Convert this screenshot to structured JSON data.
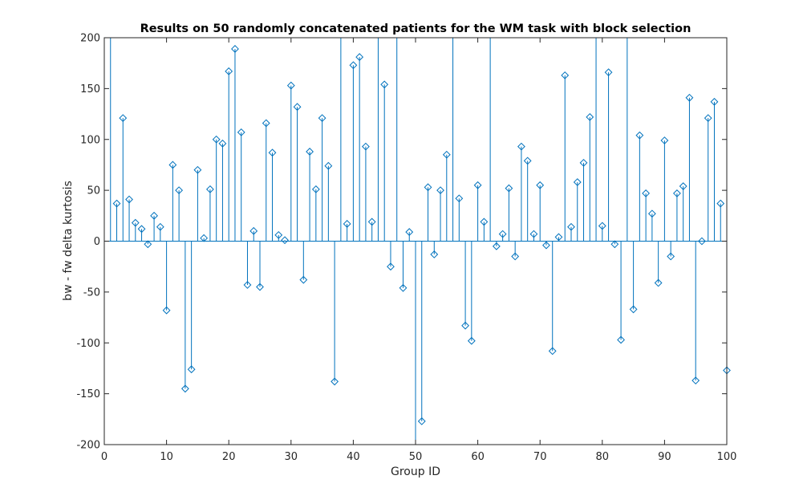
{
  "chart_data": {
    "type": "stem",
    "title": "Results on 50 randomly concatenated patients for the WM task with block selection",
    "xlabel": "Group ID",
    "ylabel": "bw - fw delta kurtosis",
    "xlim": [
      0,
      100
    ],
    "ylim": [
      -200,
      200
    ],
    "xticks": [
      0,
      10,
      20,
      30,
      40,
      50,
      60,
      70,
      80,
      90,
      100
    ],
    "yticks": [
      -200,
      -150,
      -100,
      -50,
      0,
      50,
      100,
      150,
      200
    ],
    "grid": false,
    "legend": "none",
    "marker": "diamond",
    "x": [
      1,
      2,
      3,
      4,
      5,
      6,
      7,
      8,
      9,
      10,
      11,
      12,
      13,
      14,
      15,
      16,
      17,
      18,
      19,
      20,
      21,
      22,
      23,
      24,
      25,
      26,
      27,
      28,
      29,
      30,
      31,
      32,
      33,
      34,
      35,
      36,
      37,
      38,
      39,
      40,
      41,
      42,
      43,
      44,
      45,
      46,
      47,
      48,
      49,
      50,
      51,
      52,
      53,
      54,
      55,
      56,
      57,
      58,
      59,
      60,
      61,
      62,
      63,
      64,
      65,
      66,
      67,
      68,
      69,
      70,
      71,
      72,
      73,
      74,
      75,
      76,
      77,
      78,
      79,
      80,
      81,
      82,
      83,
      84,
      85,
      86,
      87,
      88,
      89,
      90,
      91,
      92,
      93,
      94,
      95,
      96,
      97,
      98,
      99,
      100
    ],
    "values": [
      250,
      37,
      121,
      41,
      18,
      12,
      -3,
      25,
      14,
      -68,
      75,
      50,
      -145,
      -126,
      70,
      3,
      51,
      100,
      96,
      167,
      189,
      107,
      -43,
      10,
      -45,
      116,
      87,
      6,
      1,
      153,
      132,
      -38,
      88,
      51,
      121,
      74,
      -138,
      250,
      17,
      173,
      181,
      93,
      19,
      250,
      154,
      -25,
      250,
      -46,
      9,
      -250,
      -177,
      53,
      -13,
      50,
      85,
      250,
      42,
      -83,
      -98,
      55,
      19,
      250,
      -5,
      7,
      52,
      -15,
      93,
      79,
      7,
      55,
      -4,
      -108,
      4,
      163,
      14,
      58,
      77,
      122,
      250,
      15,
      166,
      -3,
      -97,
      250,
      -67,
      104,
      47,
      27,
      -41,
      99,
      -15,
      47,
      54,
      141,
      -137,
      0,
      121,
      137,
      37,
      -127
    ]
  },
  "style": {
    "stem_color": "#0072bd",
    "axis_color": "#262626",
    "background": "#ffffff"
  }
}
